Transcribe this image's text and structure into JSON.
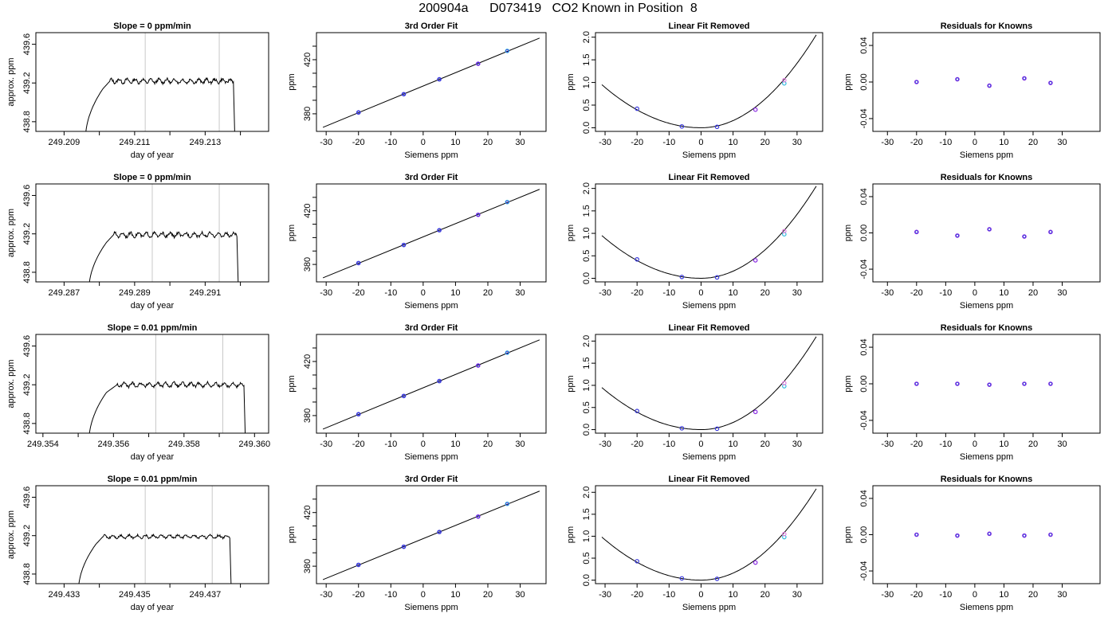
{
  "title": "200904a      D073419   CO2 Known in Position  8",
  "colors": {
    "axis": "#000000",
    "guide": "#c8c8c8",
    "curve": "#000000",
    "point_blue": "#3a3adc",
    "point_purple": "#8a2be2",
    "point_cyan": "#33bbdd",
    "point_pink": "#e080e0",
    "point_red": "#d04040"
  },
  "chart_data": [
    {
      "type": "line",
      "row": 1,
      "col": 1,
      "title": "Slope =  0  ppm/min",
      "xlabel": "day of year",
      "ylabel": "approx. ppm",
      "xlim": [
        249.2082,
        249.2148
      ],
      "ylim": [
        438.7,
        439.72
      ],
      "xticks": [
        249.209,
        249.21,
        249.211,
        249.212,
        249.213,
        249.214
      ],
      "xtick_labels": [
        "249.209",
        "",
        "249.211",
        "",
        "249.213",
        ""
      ],
      "yticks": [
        438.8,
        439.2,
        439.6
      ],
      "ytick_labels": [
        "438.8",
        "439.2",
        "439.6"
      ],
      "guides": [
        249.2113,
        249.2134
      ],
      "trace": {
        "start": 249.2096,
        "rise_to": 249.2101,
        "plateau_start": 249.2103,
        "end": 249.2138,
        "level": 439.22,
        "amp": 0.02
      }
    },
    {
      "type": "scatter",
      "row": 1,
      "col": 2,
      "title": "3rd Order Fit",
      "xlabel": "Siemens ppm",
      "ylabel": "ppm",
      "xlim": [
        -33,
        38
      ],
      "ylim": [
        367,
        440
      ],
      "xticks": [
        -30,
        -20,
        -10,
        0,
        10,
        20,
        30
      ],
      "xtick_labels": [
        "-30",
        "-20",
        "-10",
        "0",
        "10",
        "20",
        "30"
      ],
      "yticks": [
        380,
        390,
        400,
        410,
        420,
        430
      ],
      "ytick_labels": [
        "380",
        "",
        "",
        "",
        "420",
        ""
      ],
      "fit_line": [
        [
          -31,
          370
        ],
        [
          36,
          436
        ]
      ],
      "points": {
        "x": [
          -20,
          -6,
          5,
          17,
          26
        ],
        "y": [
          381,
          394.5,
          405.5,
          417,
          426.5
        ]
      }
    },
    {
      "type": "scatter",
      "row": 1,
      "col": 3,
      "title": "Linear Fit Removed",
      "xlabel": "Siemens ppm",
      "ylabel": "ppm",
      "xlim": [
        -33,
        38
      ],
      "ylim": [
        -0.08,
        2.1
      ],
      "xticks": [
        -30,
        -20,
        -10,
        0,
        10,
        20,
        30
      ],
      "xtick_labels": [
        "-30",
        "-20",
        "-10",
        "0",
        "10",
        "20",
        "30"
      ],
      "yticks": [
        0.0,
        0.5,
        1.0,
        1.5,
        2.0
      ],
      "ytick_labels": [
        "0.0",
        "0.5",
        "1.0",
        "1.5",
        "2.0"
      ],
      "curve": {
        "x0": -31,
        "x1": 36,
        "y_at_neg31": 0.95,
        "y_at_36": 2.05
      },
      "points": {
        "x": [
          -20,
          -6,
          5,
          17,
          26,
          26
        ],
        "y": [
          0.42,
          0.03,
          0.02,
          0.4,
          0.98,
          1.05
        ]
      }
    },
    {
      "type": "scatter",
      "row": 1,
      "col": 4,
      "title": "Residuals for Knowns",
      "xlabel": "Siemens ppm",
      "ylabel": "ppm",
      "xlim": [
        -35,
        43
      ],
      "ylim": [
        -0.054,
        0.054
      ],
      "xticks": [
        -30,
        -20,
        -10,
        0,
        10,
        20,
        30
      ],
      "xtick_labels": [
        "-30",
        "-20",
        "-10",
        "0",
        "10",
        "20",
        "30"
      ],
      "yticks": [
        -0.04,
        0.0,
        0.04
      ],
      "ytick_labels": [
        "-0.04",
        "0.00",
        "0.04"
      ],
      "points": {
        "x": [
          -20,
          -6,
          5,
          17,
          26
        ],
        "y": [
          0.0,
          0.003,
          -0.004,
          0.004,
          -0.001
        ]
      }
    },
    {
      "type": "line",
      "row": 2,
      "col": 1,
      "title": "Slope =  0  ppm/min",
      "xlabel": "day of year",
      "ylabel": "approx. ppm",
      "xlim": [
        249.2862,
        249.2928
      ],
      "ylim": [
        438.7,
        439.72
      ],
      "xticks": [
        249.287,
        249.288,
        249.289,
        249.29,
        249.291,
        249.292
      ],
      "xtick_labels": [
        "249.287",
        "",
        "249.289",
        "",
        "249.291",
        ""
      ],
      "yticks": [
        438.8,
        439.2,
        439.6
      ],
      "ytick_labels": [
        "438.8",
        "439.2",
        "439.6"
      ],
      "guides": [
        249.2895,
        249.2914
      ],
      "trace": {
        "start": 249.2877,
        "rise_to": 249.2882,
        "plateau_start": 249.2884,
        "end": 249.2919,
        "level": 439.19,
        "amp": 0.02
      }
    },
    {
      "type": "scatter",
      "row": 2,
      "col": 2,
      "title": "3rd Order Fit",
      "xlabel": "Siemens ppm",
      "ylabel": "ppm",
      "xlim": [
        -33,
        38
      ],
      "ylim": [
        367,
        440
      ],
      "xticks": [
        -30,
        -20,
        -10,
        0,
        10,
        20,
        30
      ],
      "xtick_labels": [
        "-30",
        "-20",
        "-10",
        "0",
        "10",
        "20",
        "30"
      ],
      "yticks": [
        380,
        390,
        400,
        410,
        420,
        430
      ],
      "ytick_labels": [
        "380",
        "",
        "",
        "",
        "420",
        ""
      ],
      "fit_line": [
        [
          -31,
          370
        ],
        [
          36,
          436
        ]
      ],
      "points": {
        "x": [
          -20,
          -6,
          5,
          17,
          26
        ],
        "y": [
          381,
          394.5,
          405.5,
          417,
          426.5
        ]
      }
    },
    {
      "type": "scatter",
      "row": 2,
      "col": 3,
      "title": "Linear Fit Removed",
      "xlabel": "Siemens ppm",
      "ylabel": "ppm",
      "xlim": [
        -33,
        38
      ],
      "ylim": [
        -0.08,
        2.1
      ],
      "xticks": [
        -30,
        -20,
        -10,
        0,
        10,
        20,
        30
      ],
      "xtick_labels": [
        "-30",
        "-20",
        "-10",
        "0",
        "10",
        "20",
        "30"
      ],
      "yticks": [
        0.0,
        0.5,
        1.0,
        1.5,
        2.0
      ],
      "ytick_labels": [
        "0.0",
        "0.5",
        "1.0",
        "1.5",
        "2.0"
      ],
      "curve": {
        "x0": -31,
        "x1": 36,
        "y_at_neg31": 0.95,
        "y_at_36": 2.05
      },
      "points": {
        "x": [
          -20,
          -6,
          5,
          17,
          26,
          26
        ],
        "y": [
          0.42,
          0.03,
          0.02,
          0.4,
          0.98,
          1.05
        ]
      }
    },
    {
      "type": "scatter",
      "row": 2,
      "col": 4,
      "title": "Residuals for Knowns",
      "xlabel": "Siemens ppm",
      "ylabel": "ppm",
      "xlim": [
        -35,
        43
      ],
      "ylim": [
        -0.054,
        0.054
      ],
      "xticks": [
        -30,
        -20,
        -10,
        0,
        10,
        20,
        30
      ],
      "xtick_labels": [
        "-30",
        "-20",
        "-10",
        "0",
        "10",
        "20",
        "30"
      ],
      "yticks": [
        -0.04,
        0.0,
        0.04
      ],
      "ytick_labels": [
        "-0.04",
        "0.00",
        "0.04"
      ],
      "points": {
        "x": [
          -20,
          -6,
          5,
          17,
          26
        ],
        "y": [
          0.001,
          -0.003,
          0.004,
          -0.004,
          0.001
        ]
      }
    },
    {
      "type": "line",
      "row": 3,
      "col": 1,
      "title": "Slope =  0.01  ppm/min",
      "xlabel": "day of year",
      "ylabel": "approx. ppm",
      "xlim": [
        249.3538,
        249.3604
      ],
      "ylim": [
        438.7,
        439.72
      ],
      "xticks": [
        249.354,
        249.355,
        249.356,
        249.357,
        249.358,
        249.359,
        249.36
      ],
      "xtick_labels": [
        "249.354",
        "",
        "249.356",
        "",
        "249.358",
        "",
        "249.360"
      ],
      "yticks": [
        438.8,
        439.2,
        439.6
      ],
      "ytick_labels": [
        "438.8",
        "439.2",
        "439.6"
      ],
      "guides": [
        249.3572,
        249.3591
      ],
      "trace": {
        "start": 249.3553,
        "rise_to": 249.3558,
        "plateau_start": 249.3561,
        "end": 249.3597,
        "level": 439.2,
        "amp": 0.02
      }
    },
    {
      "type": "scatter",
      "row": 3,
      "col": 2,
      "title": "3rd Order Fit",
      "xlabel": "Siemens ppm",
      "ylabel": "ppm",
      "xlim": [
        -33,
        38
      ],
      "ylim": [
        367,
        440
      ],
      "xticks": [
        -30,
        -20,
        -10,
        0,
        10,
        20,
        30
      ],
      "xtick_labels": [
        "-30",
        "-20",
        "-10",
        "0",
        "10",
        "20",
        "30"
      ],
      "yticks": [
        380,
        390,
        400,
        410,
        420,
        430
      ],
      "ytick_labels": [
        "380",
        "",
        "",
        "",
        "420",
        ""
      ],
      "fit_line": [
        [
          -31,
          370
        ],
        [
          36,
          436
        ]
      ],
      "points": {
        "x": [
          -20,
          -6,
          5,
          17,
          26
        ],
        "y": [
          381,
          394.5,
          405.5,
          417,
          426.5
        ]
      }
    },
    {
      "type": "scatter",
      "row": 3,
      "col": 3,
      "title": "Linear Fit Removed",
      "xlabel": "Siemens ppm",
      "ylabel": "ppm",
      "xlim": [
        -33,
        38
      ],
      "ylim": [
        -0.08,
        2.15
      ],
      "xticks": [
        -30,
        -20,
        -10,
        0,
        10,
        20,
        30
      ],
      "xtick_labels": [
        "-30",
        "-20",
        "-10",
        "0",
        "10",
        "20",
        "30"
      ],
      "yticks": [
        0.0,
        0.5,
        1.0,
        1.5,
        2.0
      ],
      "ytick_labels": [
        "0.0",
        "0.5",
        "1.0",
        "1.5",
        "2.0"
      ],
      "curve": {
        "x0": -31,
        "x1": 36,
        "y_at_neg31": 0.95,
        "y_at_36": 2.1
      },
      "points": {
        "x": [
          -20,
          -6,
          5,
          17,
          26,
          26
        ],
        "y": [
          0.42,
          0.03,
          0.02,
          0.4,
          0.98,
          1.05
        ]
      }
    },
    {
      "type": "scatter",
      "row": 3,
      "col": 4,
      "title": "Residuals for Knowns",
      "xlabel": "Siemens ppm",
      "ylabel": "ppm",
      "xlim": [
        -35,
        43
      ],
      "ylim": [
        -0.054,
        0.054
      ],
      "xticks": [
        -30,
        -20,
        -10,
        0,
        10,
        20,
        30
      ],
      "xtick_labels": [
        "-30",
        "-20",
        "-10",
        "0",
        "10",
        "20",
        "30"
      ],
      "yticks": [
        -0.04,
        0.0,
        0.04
      ],
      "ytick_labels": [
        "-0.04",
        "0.00",
        "0.04"
      ],
      "points": {
        "x": [
          -20,
          -6,
          5,
          17,
          26
        ],
        "y": [
          0.0,
          0.0,
          -0.001,
          0.0,
          0.0
        ]
      }
    },
    {
      "type": "line",
      "row": 4,
      "col": 1,
      "title": "Slope =  0.01  ppm/min",
      "xlabel": "day of year",
      "ylabel": "approx. ppm",
      "xlim": [
        249.4322,
        249.4388
      ],
      "ylim": [
        438.7,
        439.72
      ],
      "xticks": [
        249.433,
        249.434,
        249.435,
        249.436,
        249.437,
        249.438
      ],
      "xtick_labels": [
        "249.433",
        "",
        "249.435",
        "",
        "249.437",
        ""
      ],
      "yticks": [
        438.8,
        439.2,
        439.6
      ],
      "ytick_labels": [
        "438.8",
        "439.2",
        "439.6"
      ],
      "guides": [
        249.4353,
        249.4372
      ],
      "trace": {
        "start": 249.4334,
        "rise_to": 249.4339,
        "plateau_start": 249.4341,
        "end": 249.4377,
        "level": 439.19,
        "amp": 0.015
      }
    },
    {
      "type": "scatter",
      "row": 4,
      "col": 2,
      "title": "3rd Order Fit",
      "xlabel": "Siemens ppm",
      "ylabel": "ppm",
      "xlim": [
        -33,
        38
      ],
      "ylim": [
        367,
        440
      ],
      "xticks": [
        -30,
        -20,
        -10,
        0,
        10,
        20,
        30
      ],
      "xtick_labels": [
        "-30",
        "-20",
        "-10",
        "0",
        "10",
        "20",
        "30"
      ],
      "yticks": [
        380,
        390,
        400,
        410,
        420,
        430
      ],
      "ytick_labels": [
        "380",
        "",
        "",
        "",
        "420",
        ""
      ],
      "fit_line": [
        [
          -31,
          370
        ],
        [
          36,
          436
        ]
      ],
      "points": {
        "x": [
          -20,
          -6,
          5,
          17,
          26
        ],
        "y": [
          381,
          394.5,
          405.5,
          417,
          426.5
        ]
      }
    },
    {
      "type": "scatter",
      "row": 4,
      "col": 3,
      "title": "Linear Fit Removed",
      "xlabel": "Siemens ppm",
      "ylabel": "ppm",
      "xlim": [
        -33,
        38
      ],
      "ylim": [
        -0.08,
        2.15
      ],
      "xticks": [
        -30,
        -20,
        -10,
        0,
        10,
        20,
        30
      ],
      "xtick_labels": [
        "-30",
        "-20",
        "-10",
        "0",
        "10",
        "20",
        "30"
      ],
      "yticks": [
        0.0,
        0.5,
        1.0,
        1.5,
        2.0
      ],
      "ytick_labels": [
        "0.0",
        "0.5",
        "1.0",
        "1.5",
        "2.0"
      ],
      "curve": {
        "x0": -31,
        "x1": 36,
        "y_at_neg31": 0.98,
        "y_at_36": 2.08
      },
      "points": {
        "x": [
          -20,
          -6,
          5,
          17,
          26,
          26
        ],
        "y": [
          0.43,
          0.04,
          0.03,
          0.4,
          0.98,
          1.05
        ]
      }
    },
    {
      "type": "scatter",
      "row": 4,
      "col": 4,
      "title": "Residuals for Knowns",
      "xlabel": "Siemens ppm",
      "ylabel": "ppm",
      "xlim": [
        -35,
        43
      ],
      "ylim": [
        -0.054,
        0.054
      ],
      "xticks": [
        -30,
        -20,
        -10,
        0,
        10,
        20,
        30
      ],
      "xtick_labels": [
        "-30",
        "-20",
        "-10",
        "0",
        "10",
        "20",
        "30"
      ],
      "yticks": [
        -0.04,
        0.0,
        0.04
      ],
      "ytick_labels": [
        "-0.04",
        "0.00",
        "0.04"
      ],
      "points": {
        "x": [
          -20,
          -6,
          5,
          17,
          26
        ],
        "y": [
          0.0,
          -0.001,
          0.001,
          -0.001,
          0.0
        ]
      }
    }
  ]
}
